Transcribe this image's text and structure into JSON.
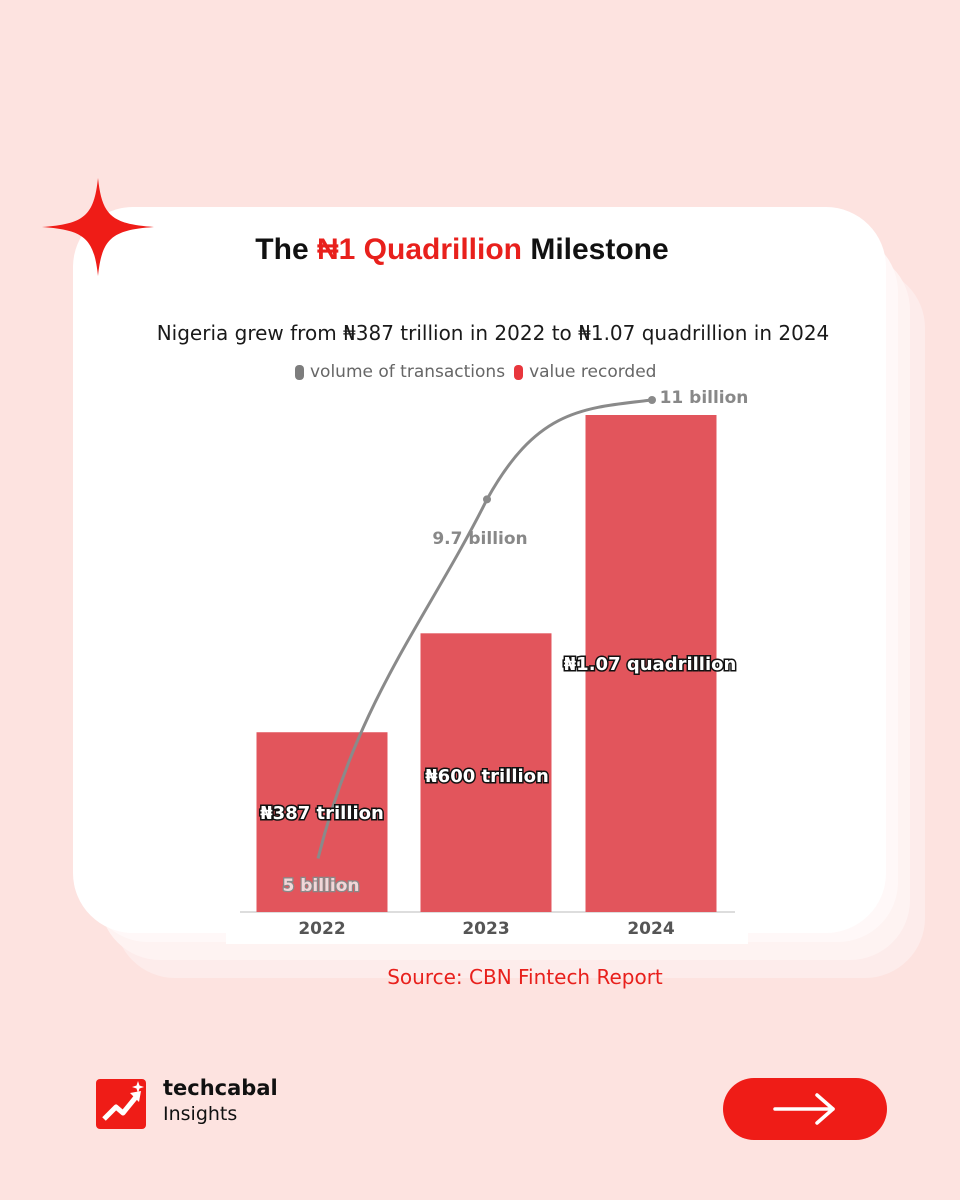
{
  "header": {
    "title_before": "The ",
    "title_highlight": "₦1 Quadrillion",
    "title_after": " Milestone",
    "subtitle": "Nigeria grew from ₦387 trillion in 2022 to ₦1.07 quadrillion in 2024"
  },
  "legend": {
    "volume_label": "volume of transactions",
    "value_label": "value recorded"
  },
  "colors": {
    "bar": "#e2555c",
    "line": "#8a8a8a",
    "accent": "#e8201c",
    "background": "#fde3e0"
  },
  "chart_data": {
    "type": "bar",
    "categories": [
      "2022",
      "2023",
      "2024"
    ],
    "series": [
      {
        "name": "value recorded",
        "values": [
          387,
          600,
          1070
        ],
        "labels": [
          "₦387 trillion",
          "₦600 trillion",
          "₦1.07 quadrillion"
        ]
      },
      {
        "name": "volume of transactions",
        "type": "line",
        "values": [
          5,
          9.7,
          11
        ],
        "labels": [
          "5 billion",
          "9.7 billion",
          "11 billion"
        ]
      }
    ],
    "title": "",
    "xlabel": "",
    "ylabel": "",
    "grid": false,
    "legend_position": "top"
  },
  "footer": {
    "source": "Source: CBN Fintech Report",
    "brand_name": "techcabal",
    "brand_sub": "Insights",
    "next_icon": "arrow-right-icon"
  }
}
